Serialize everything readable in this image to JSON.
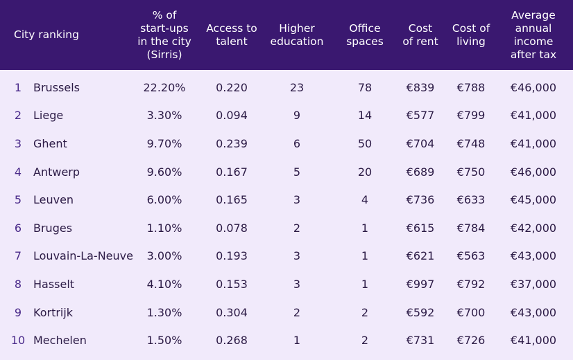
{
  "header": {
    "city_ranking": "City ranking",
    "startups": "% of\nstart-ups\nin the city\n(Sirris)",
    "talent": "Access to\ntalent",
    "education": "Higher\neducation",
    "office": "Office\nspaces",
    "rent": "Cost\nof rent",
    "living": "Cost of\nliving",
    "income": "Average\nannual\nincome\nafter tax"
  },
  "rows": [
    {
      "rank": "1",
      "city": "Brussels",
      "startups": "22.20%",
      "talent": "0.220",
      "education": "23",
      "office": "78",
      "rent": "€839",
      "living": "€788",
      "income": "€46,000"
    },
    {
      "rank": "2",
      "city": "Liege",
      "startups": "3.30%",
      "talent": "0.094",
      "education": "9",
      "office": "14",
      "rent": "€577",
      "living": "€799",
      "income": "€41,000"
    },
    {
      "rank": "3",
      "city": "Ghent",
      "startups": "9.70%",
      "talent": "0.239",
      "education": "6",
      "office": "50",
      "rent": "€704",
      "living": "€748",
      "income": "€41,000"
    },
    {
      "rank": "4",
      "city": "Antwerp",
      "startups": "9.60%",
      "talent": "0.167",
      "education": "5",
      "office": "20",
      "rent": "€689",
      "living": "€750",
      "income": "€46,000"
    },
    {
      "rank": "5",
      "city": "Leuven",
      "startups": "6.00%",
      "talent": "0.165",
      "education": "3",
      "office": "4",
      "rent": "€736",
      "living": "€633",
      "income": "€45,000"
    },
    {
      "rank": "6",
      "city": "Bruges",
      "startups": "1.10%",
      "talent": "0.078",
      "education": "2",
      "office": "1",
      "rent": "€615",
      "living": "€784",
      "income": "€42,000"
    },
    {
      "rank": "7",
      "city": "Louvain-La-Neuve",
      "startups": "3.00%",
      "talent": "0.193",
      "education": "3",
      "office": "1",
      "rent": "€621",
      "living": "€563",
      "income": "€43,000"
    },
    {
      "rank": "8",
      "city": "Hasselt",
      "startups": "4.10%",
      "talent": "0.153",
      "education": "3",
      "office": "1",
      "rent": "€997",
      "living": "€792",
      "income": "€37,000"
    },
    {
      "rank": "9",
      "city": "Kortrijk",
      "startups": "1.30%",
      "talent": "0.304",
      "education": "2",
      "office": "2",
      "rent": "€592",
      "living": "€700",
      "income": "€43,000"
    },
    {
      "rank": "10",
      "city": "Mechelen",
      "startups": "1.50%",
      "talent": "0.268",
      "education": "1",
      "office": "2",
      "rent": "€731",
      "living": "€726",
      "income": "€41,000"
    }
  ]
}
